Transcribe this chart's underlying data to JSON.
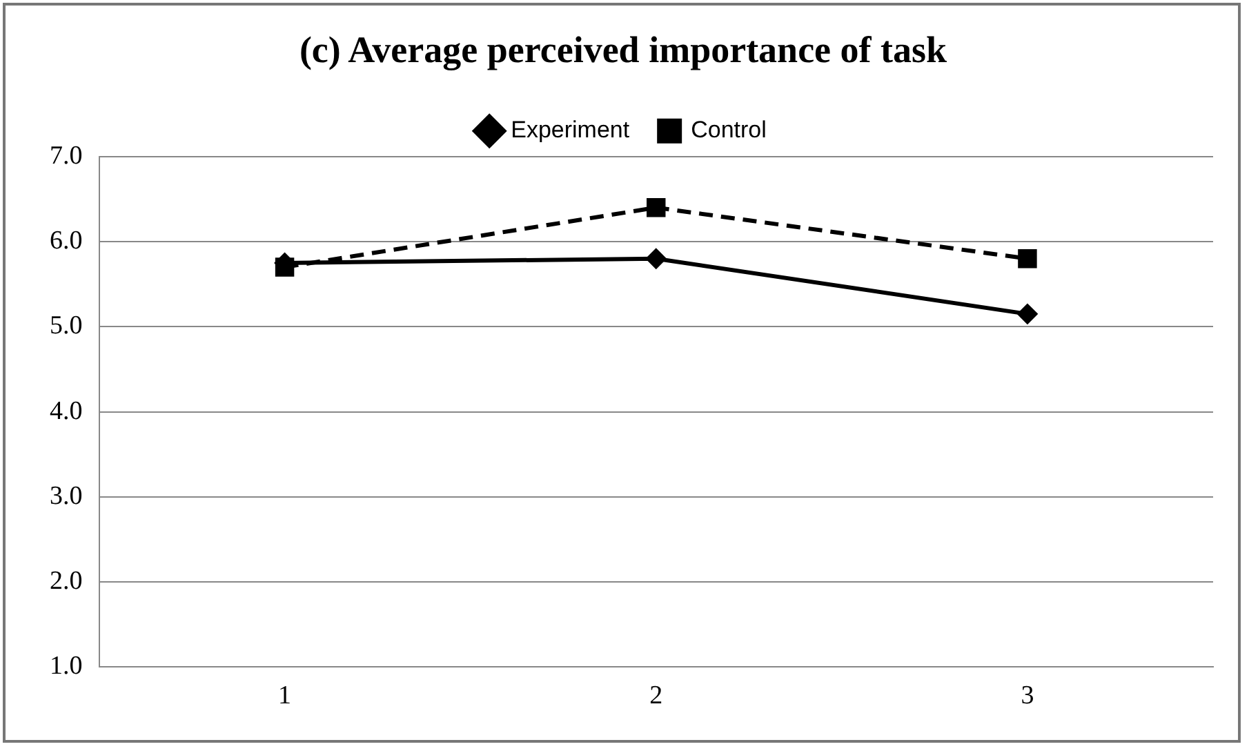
{
  "chart_data": {
    "type": "line",
    "title": "(c) Average perceived importance of task",
    "categories": [
      "1",
      "2",
      "3"
    ],
    "series": [
      {
        "name": "Experiment",
        "color": "#000000",
        "values": [
          5.75,
          5.8,
          5.15
        ],
        "marker": "diamond",
        "line_style": "solid"
      },
      {
        "name": "Control",
        "color": "#000000",
        "values": [
          5.7,
          6.4,
          5.8
        ],
        "marker": "square",
        "line_style": "dashed"
      }
    ],
    "ylim": [
      1,
      7
    ],
    "yticks": [
      {
        "value": 1,
        "label": "1.0"
      },
      {
        "value": 2,
        "label": "2.0"
      },
      {
        "value": 3,
        "label": "3.0"
      },
      {
        "value": 4,
        "label": "4.0"
      },
      {
        "value": 5,
        "label": "5.0"
      },
      {
        "value": 6,
        "label": "6.0"
      },
      {
        "value": 7,
        "label": "7.0"
      }
    ],
    "grid": "y",
    "legend": "top"
  }
}
